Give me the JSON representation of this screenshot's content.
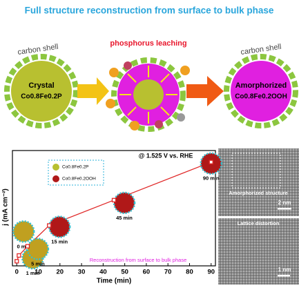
{
  "title": "Full structure reconstruction from surface to bulk phase",
  "top": {
    "shell_left": "carbon shell",
    "shell_right": "carbon shell",
    "leaching": "phosphorus leaching",
    "left_label": "Crystal",
    "left_formula": "Co0.8Fe0.2P",
    "right_label": "Amorphorized",
    "right_formula": "Co0.8Fe0.2OOH"
  },
  "chart_data": {
    "type": "line",
    "x_label": "Time (min)",
    "y_label": "j (mA cm⁻²)",
    "condition": "@ 1.525 V vs. RHE",
    "legend": [
      "Co0.8Fe0.2P",
      "Co0.8Fe0.2OOH"
    ],
    "annotation": "Reconstruction from surface to bulk phase",
    "x": [
      0,
      1,
      5,
      15,
      45,
      90
    ],
    "point_labels": [
      "0 min",
      "1 min",
      "5 min",
      "15 min",
      "45 min",
      "90 min"
    ],
    "values": [
      4,
      9,
      17,
      35,
      57,
      90
    ],
    "color": "#e02828",
    "xlim": [
      -2,
      92
    ],
    "xticks": [
      0,
      10,
      20,
      30,
      40,
      50,
      60,
      70,
      80,
      90
    ],
    "ylim": [
      0,
      100
    ]
  },
  "images": [
    {
      "caption": "Amorphorized  structure",
      "scale": "2 nm"
    },
    {
      "caption": "Lattice distortion",
      "scale": "1 nm"
    }
  ]
}
